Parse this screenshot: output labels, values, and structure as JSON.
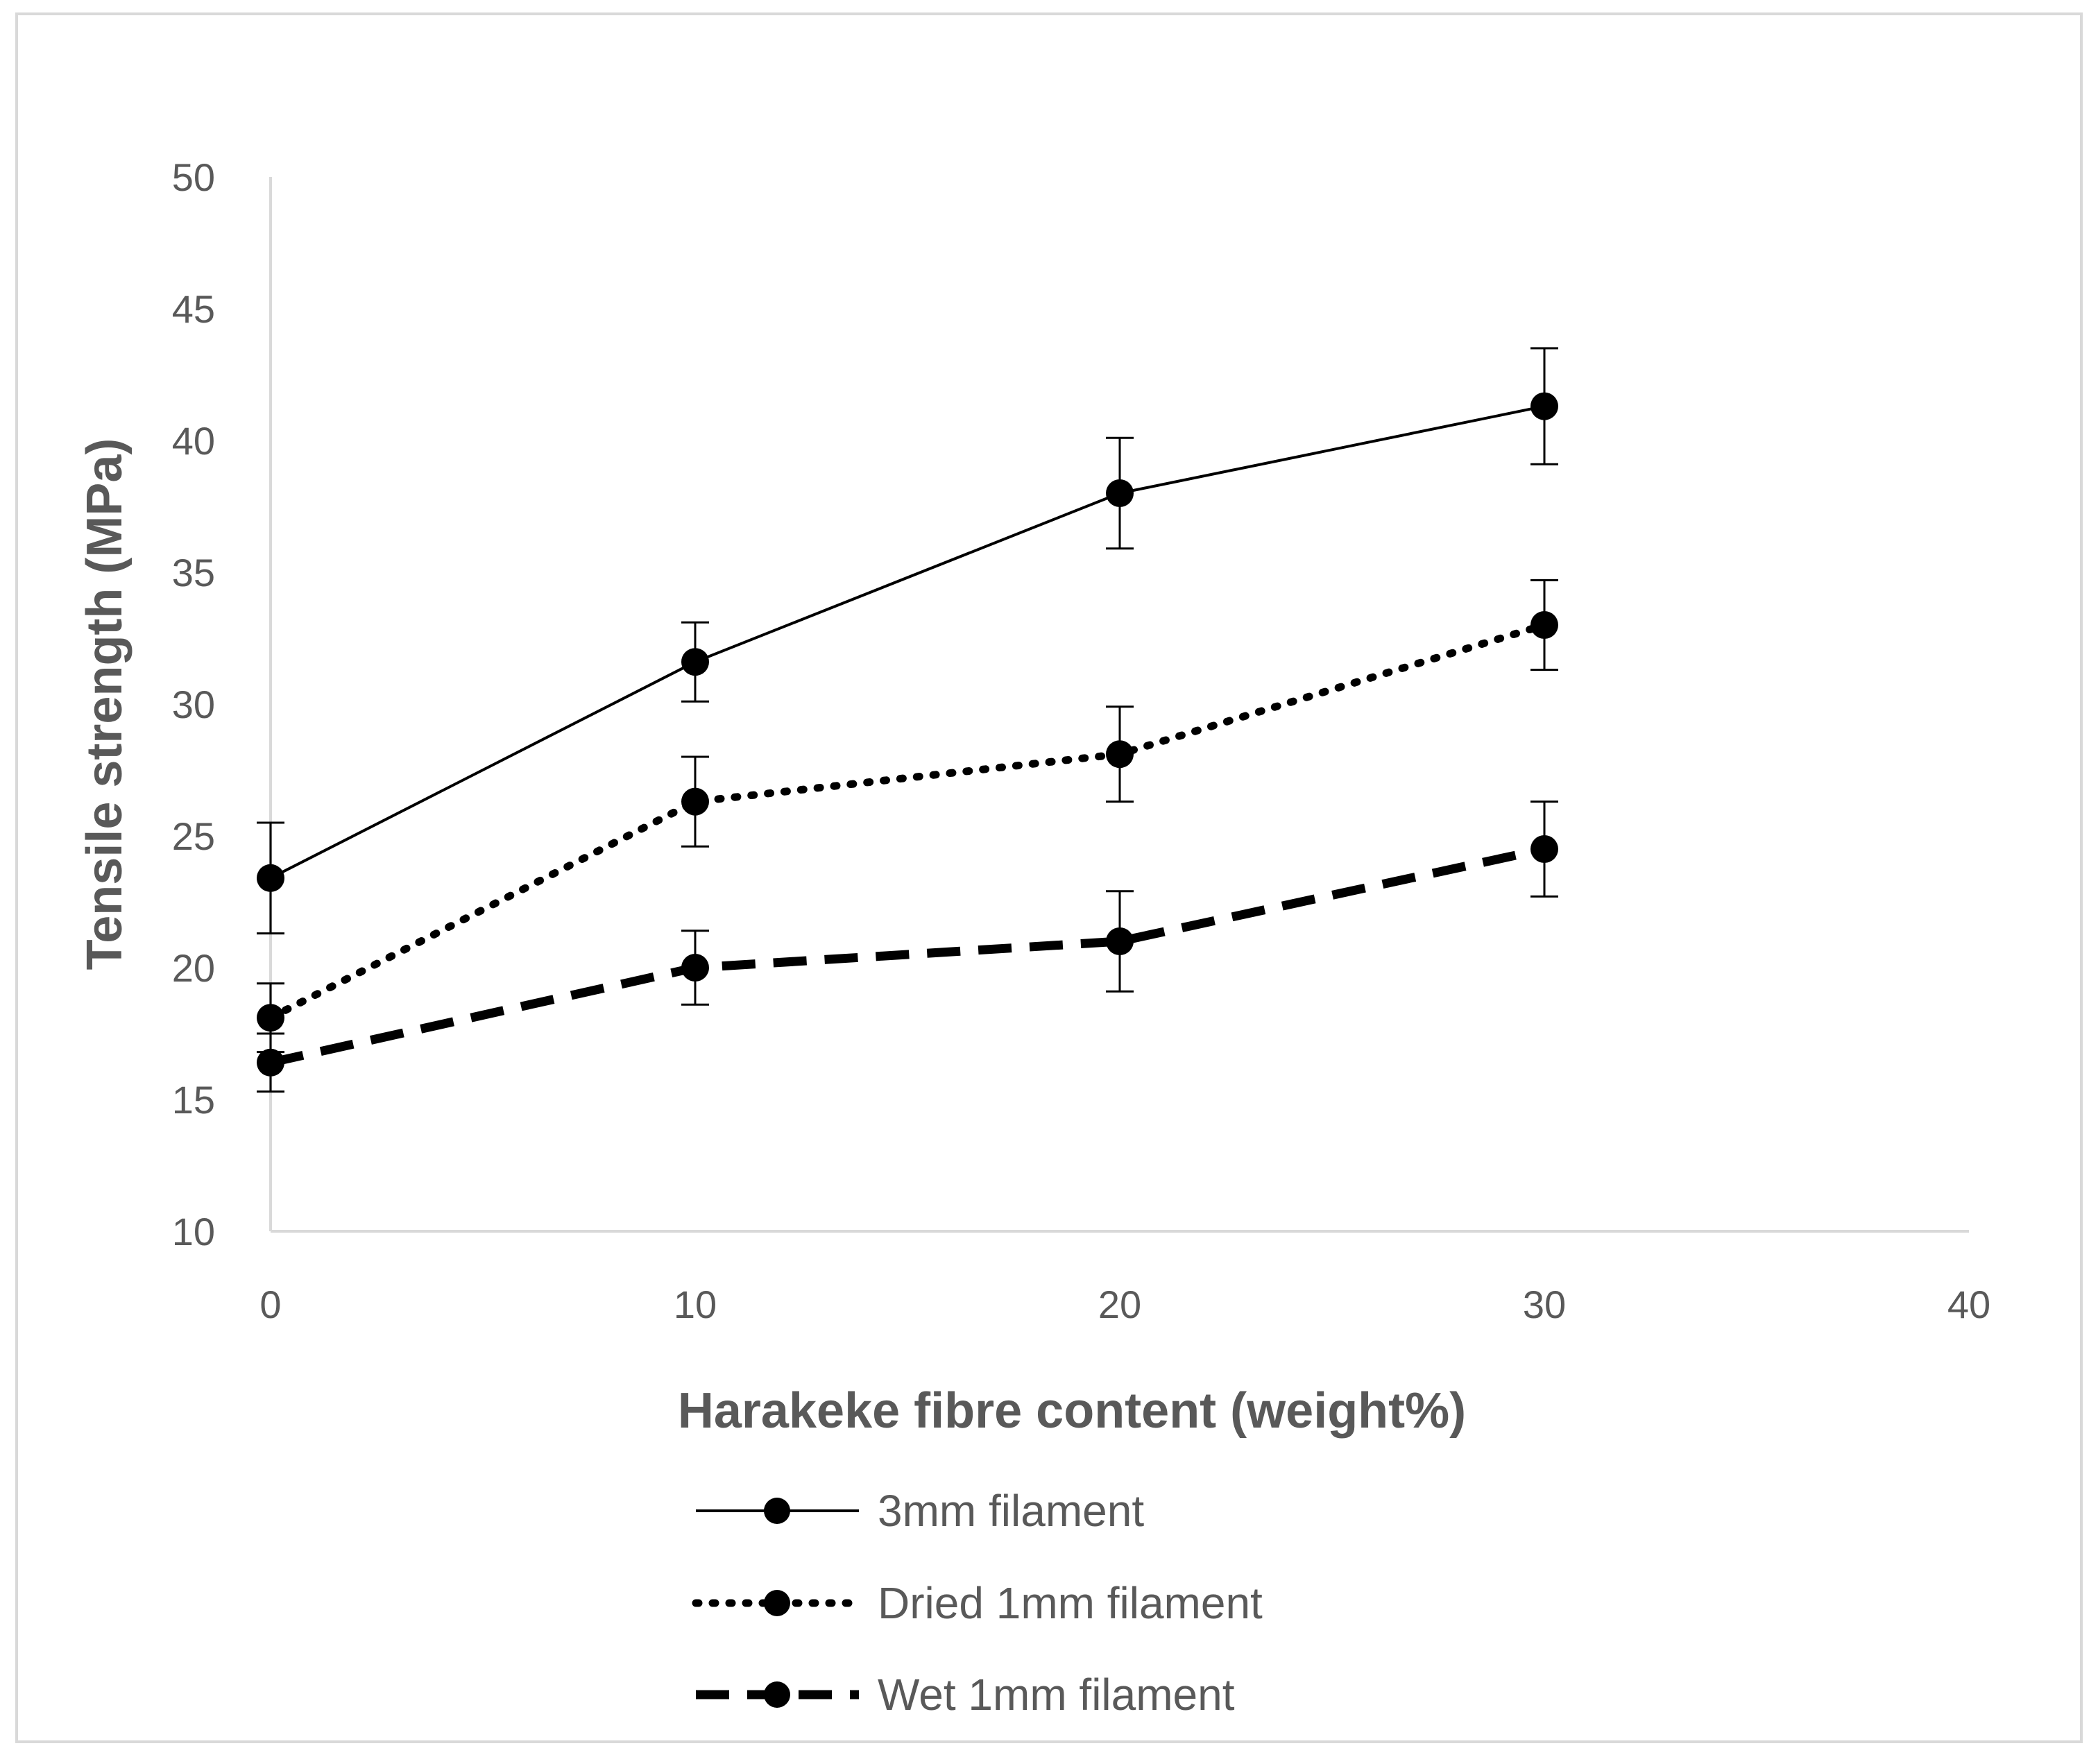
{
  "chart_data": {
    "type": "line",
    "xlabel": "Harakeke fibre content (weight%)",
    "ylabel": "Tensile strength (MPa)",
    "xlim": [
      0,
      40
    ],
    "ylim": [
      10,
      50
    ],
    "x_ticks": [
      0,
      10,
      20,
      30,
      40
    ],
    "y_ticks": [
      10,
      15,
      20,
      25,
      30,
      35,
      40,
      45,
      50
    ],
    "x": [
      0,
      10,
      20,
      30
    ],
    "grid": false,
    "legend_position": "bottom",
    "series": [
      {
        "name": "3mm filament",
        "line_style": "solid",
        "values": [
          23.4,
          31.6,
          38.0,
          41.3
        ],
        "error": [
          2.1,
          1.5,
          2.1,
          2.2
        ],
        "color": "#000000"
      },
      {
        "name": "Dried 1mm filament",
        "line_style": "dotted",
        "values": [
          18.1,
          26.3,
          28.1,
          33.0
        ],
        "error": [
          1.3,
          1.7,
          1.8,
          1.7
        ],
        "color": "#000000"
      },
      {
        "name": "Wet 1mm filament",
        "line_style": "dashed",
        "values": [
          16.4,
          20.0,
          21.0,
          24.5
        ],
        "error": [
          1.1,
          1.4,
          1.9,
          1.8
        ],
        "color": "#000000"
      }
    ]
  }
}
